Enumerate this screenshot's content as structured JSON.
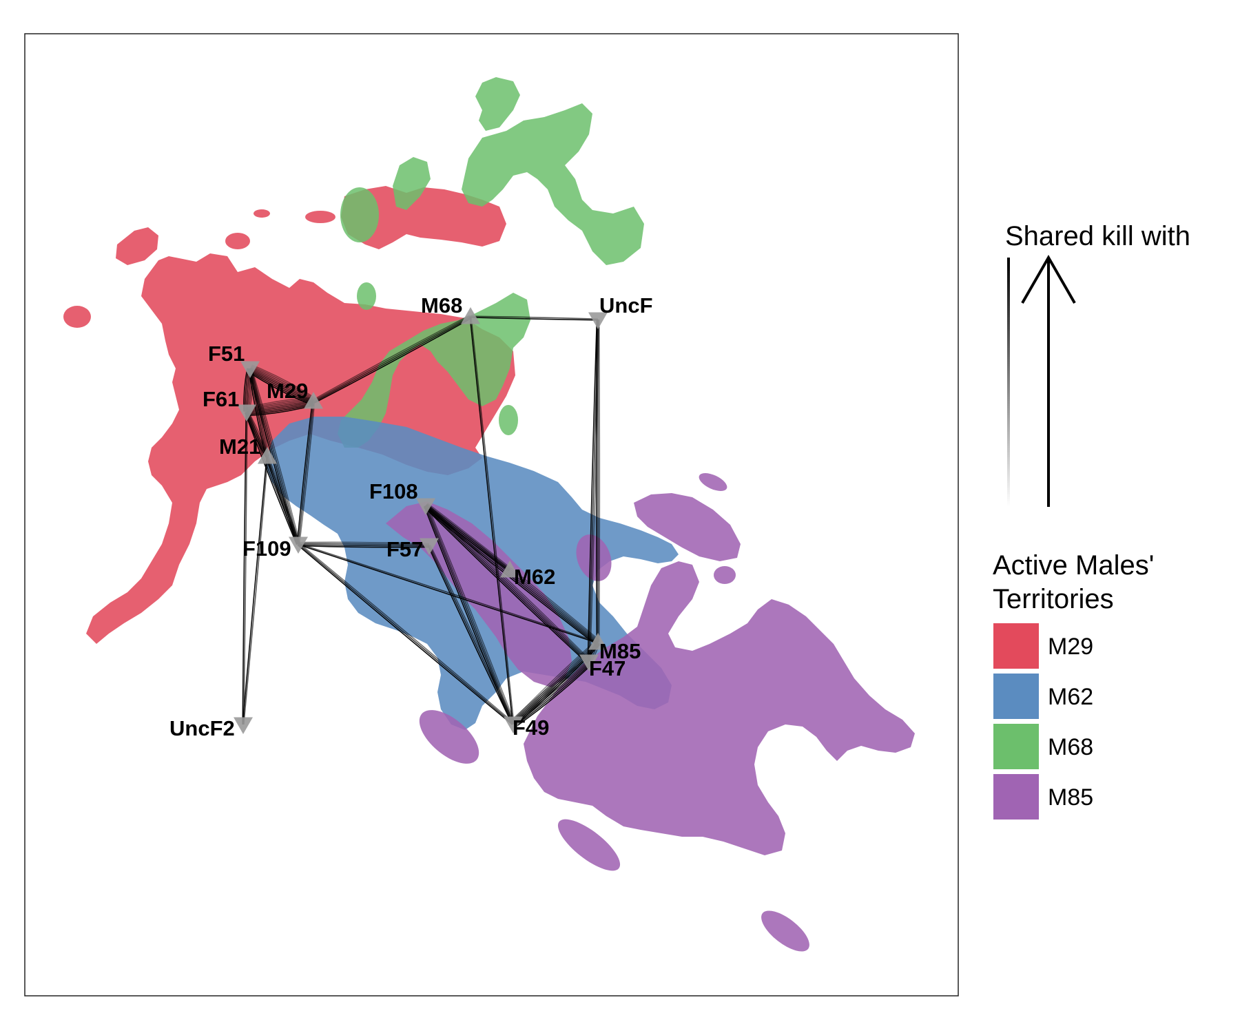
{
  "colors": {
    "M29": "#e34a5c",
    "M62": "#5b8cc0",
    "M68": "#6cbf6c",
    "M85": "#a064b3",
    "node_fill": "#9a9a9a",
    "edge": "#000000",
    "panel_border": "#222222"
  },
  "nodes": [
    {
      "id": "M68",
      "label": "M68",
      "shape": "triangle-up"
    },
    {
      "id": "UncF",
      "label": "UncF",
      "shape": "triangle-down"
    },
    {
      "id": "F51",
      "label": "F51",
      "shape": "triangle-down"
    },
    {
      "id": "M29",
      "label": "M29",
      "shape": "triangle-up"
    },
    {
      "id": "F61",
      "label": "F61",
      "shape": "triangle-down"
    },
    {
      "id": "M21",
      "label": "M21",
      "shape": "triangle-up"
    },
    {
      "id": "F108",
      "label": "F108",
      "shape": "triangle-down"
    },
    {
      "id": "F109",
      "label": "F109",
      "shape": "triangle-down"
    },
    {
      "id": "F57",
      "label": "F57",
      "shape": "triangle-down"
    },
    {
      "id": "M62",
      "label": "M62",
      "shape": "triangle-up"
    },
    {
      "id": "M85",
      "label": "M85",
      "shape": "triangle-up"
    },
    {
      "id": "F47",
      "label": "F47",
      "shape": "triangle-down"
    },
    {
      "id": "F49",
      "label": "F49",
      "shape": "triangle-down"
    },
    {
      "id": "UncF2",
      "label": "UncF2",
      "shape": "triangle-down"
    }
  ],
  "edges": [
    {
      "from": "F51",
      "to": "M29",
      "weight": 8
    },
    {
      "from": "F61",
      "to": "M29",
      "weight": 8
    },
    {
      "from": "F51",
      "to": "F61",
      "weight": 6
    },
    {
      "from": "F51",
      "to": "M21",
      "weight": 4
    },
    {
      "from": "F61",
      "to": "M21",
      "weight": 4
    },
    {
      "from": "M29",
      "to": "M68",
      "weight": 4
    },
    {
      "from": "M68",
      "to": "UncF",
      "weight": 2
    },
    {
      "from": "M68",
      "to": "F49",
      "weight": 2
    },
    {
      "from": "UncF",
      "to": "F47",
      "weight": 3
    },
    {
      "from": "UncF",
      "to": "M85",
      "weight": 3
    },
    {
      "from": "F51",
      "to": "F109",
      "weight": 4
    },
    {
      "from": "F61",
      "to": "F109",
      "weight": 4
    },
    {
      "from": "M29",
      "to": "F109",
      "weight": 3
    },
    {
      "from": "M21",
      "to": "F109",
      "weight": 3
    },
    {
      "from": "F61",
      "to": "UncF2",
      "weight": 2
    },
    {
      "from": "M21",
      "to": "UncF2",
      "weight": 2
    },
    {
      "from": "F109",
      "to": "F57",
      "weight": 4
    },
    {
      "from": "F109",
      "to": "F49",
      "weight": 3
    },
    {
      "from": "F109",
      "to": "M85",
      "weight": 2
    },
    {
      "from": "F108",
      "to": "M85",
      "weight": 6
    },
    {
      "from": "F108",
      "to": "F47",
      "weight": 5
    },
    {
      "from": "F108",
      "to": "F49",
      "weight": 4
    },
    {
      "from": "F108",
      "to": "M62",
      "weight": 3
    },
    {
      "from": "F57",
      "to": "F49",
      "weight": 3
    },
    {
      "from": "F49",
      "to": "F47",
      "weight": 8
    },
    {
      "from": "F49",
      "to": "M85",
      "weight": 6
    },
    {
      "from": "M85",
      "to": "F47",
      "weight": 4
    }
  ],
  "legend": {
    "edge_title": "Shared kill with",
    "territory_title_line1": "Active Males'",
    "territory_title_line2": "Territories",
    "territories": [
      "M29",
      "M62",
      "M68",
      "M85"
    ]
  }
}
